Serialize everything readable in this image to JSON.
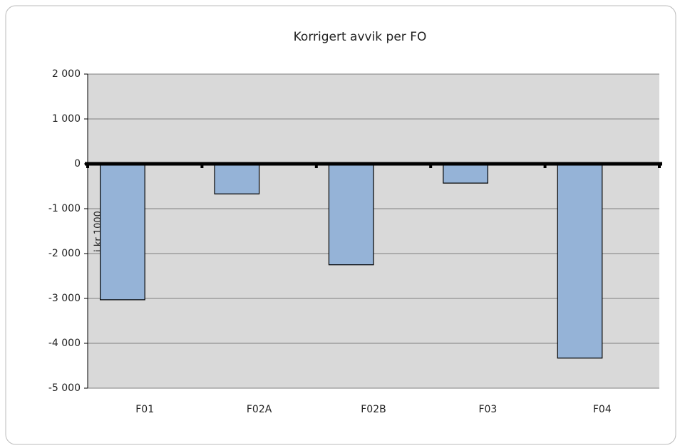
{
  "chart_data": {
    "type": "bar",
    "title": "Korrigert avvik per FO",
    "y_label": "i kr 1000",
    "categories": [
      "F01",
      "F02A",
      "F02B",
      "F03",
      "F04"
    ],
    "values": [
      -3030,
      -670,
      -2250,
      -430,
      -4330
    ],
    "color": "#95b3d7",
    "ylim": [
      -5000,
      2000
    ],
    "yticks": [
      {
        "value": -5000,
        "label": "-5 000"
      },
      {
        "value": -4000,
        "label": "-4 000"
      },
      {
        "value": -3000,
        "label": "-3 000"
      },
      {
        "value": -2000,
        "label": "-2 000"
      },
      {
        "value": -1000,
        "label": "-1 000"
      },
      0,
      {
        "value": 1000,
        "label": "1 000"
      },
      {
        "value": 2000,
        "label": "2 000"
      }
    ],
    "grid": true
  }
}
